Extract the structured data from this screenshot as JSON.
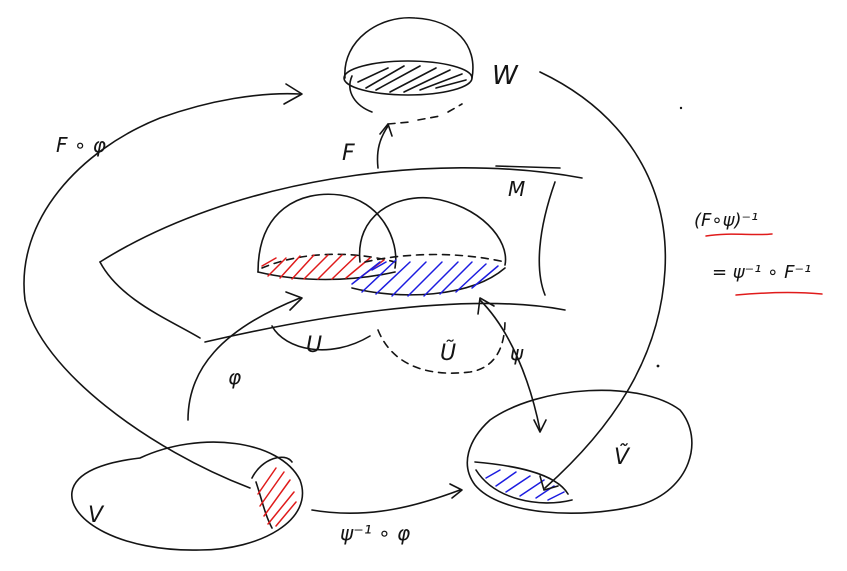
{
  "labels": {
    "W": "W",
    "M": "M",
    "F": "F",
    "F_circ_phi": "F ∘ φ",
    "phi": "φ",
    "psi": "ψ",
    "U": "U",
    "U_tilde": "Ũ",
    "V": "V",
    "V_tilde": "Ṽ",
    "psi_inv_phi": "ψ⁻¹ ∘ φ",
    "inverse_line1": "(F∘ψ)⁻¹",
    "inverse_line2": "= ψ⁻¹ ∘ F⁻¹"
  },
  "colors": {
    "ink": "#141414",
    "red": "#e01b1b",
    "blue": "#1c1ce0"
  }
}
